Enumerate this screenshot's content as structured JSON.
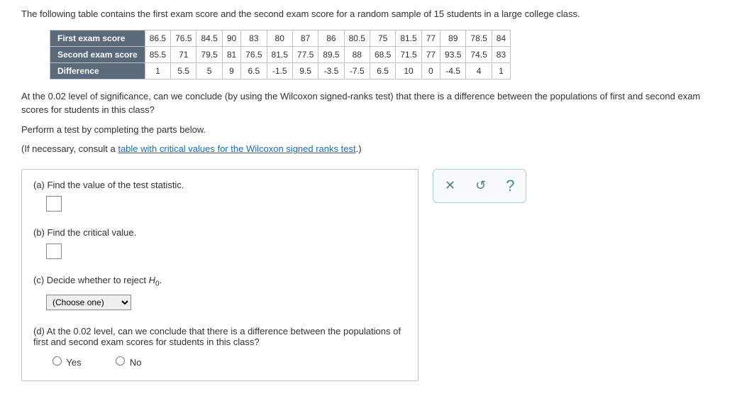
{
  "intro": "The following table contains the first exam score and the second exam score for a random sample of 15 students in a large college class.",
  "table": {
    "row_headers": [
      "First exam score",
      "Second exam score",
      "Difference"
    ],
    "rows": [
      [
        "86.5",
        "76.5",
        "84.5",
        "90",
        "83",
        "80",
        "87",
        "86",
        "80.5",
        "75",
        "81.5",
        "77",
        "89",
        "78.5",
        "84"
      ],
      [
        "85.5",
        "71",
        "79.5",
        "81",
        "76.5",
        "81.5",
        "77.5",
        "89.5",
        "88",
        "68.5",
        "71.5",
        "77",
        "93.5",
        "74.5",
        "83"
      ],
      [
        "1",
        "5.5",
        "5",
        "9",
        "6.5",
        "-1.5",
        "9.5",
        "-3.5",
        "-7.5",
        "6.5",
        "10",
        "0",
        "-4.5",
        "4",
        "1"
      ]
    ]
  },
  "question1": "At the 0.02 level of significance, can we conclude (by using the Wilcoxon signed-ranks test) that there is a difference between the populations of first and second exam scores for students in this class?",
  "question2": "Perform a test by completing the parts below.",
  "question3_prefix": "(If necessary, consult a ",
  "question3_link": "table with critical values for the Wilcoxon signed ranks test",
  "question3_suffix": ".)",
  "parts": {
    "a": "(a) Find the value of the test statistic.",
    "b": "(b) Find the critical value.",
    "c_prefix": "(c) Decide whether to reject ",
    "c_h0": "H",
    "c_sub": "0",
    "c_suffix": ".",
    "c_select": "(Choose one)",
    "d": "(d) At the 0.02 level, can we conclude that there is a difference between the populations of first and second exam scores for students in this class?",
    "yes": "Yes",
    "no": "No"
  },
  "tools": {
    "close": "✕",
    "reset": "↺",
    "help": "?"
  }
}
